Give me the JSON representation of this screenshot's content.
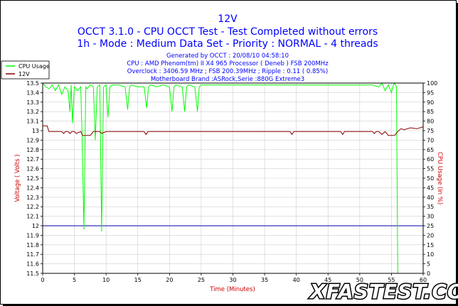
{
  "header": {
    "title": "12V",
    "line1": "OCCT 3.1.0 - CPU OCCT Test - Test Completed without errors",
    "line2": "1h - Mode : Medium Data Set - Priority : NORMAL - 4 threads"
  },
  "info": {
    "generated": "Generated by OCCT : 20/08/10 04:58:10",
    "cpu": "CPU : AMD Phenom(tm) II X4 965 Processor ( Deneb ) FSB 200MHz",
    "overclock": "Overclock : 3406.59 MHz ; FSB 200.39MHz ; Ripple : 0.11 ( 0.85%)",
    "motherboard": "Motherboard Brand :ASRock,Serie :880G Extreme3"
  },
  "watermark": {
    "brand": "XFASTEST.COM",
    "domain": ".com"
  },
  "colors": {
    "voltage": "#8b0000",
    "cpu": "#00ff00",
    "reference": "#0000aa",
    "title": "#0000ff",
    "axis_label": "#cc0000"
  },
  "chart_data": {
    "type": "line",
    "xlabel": "Time (Minutes)",
    "ylabel_left": "Voltage ( Volts )",
    "ylabel_right": "CPU Usage (in %)",
    "xlim": [
      0,
      60
    ],
    "ylim_left": [
      11.5,
      13.5
    ],
    "ylim_right": [
      0,
      100
    ],
    "x_ticks": [
      0,
      5,
      10,
      15,
      20,
      25,
      30,
      35,
      40,
      45,
      50,
      55,
      60
    ],
    "y_ticks_left": [
      "11.5",
      "11.6",
      "11.7",
      "11.8",
      "11.9",
      "12",
      "12.1",
      "12.2",
      "12.3",
      "12.4",
      "12.5",
      "12.6",
      "12.7",
      "12.8",
      "12.9",
      "13",
      "13.1",
      "13.2",
      "13.3",
      "13.4",
      "13.5"
    ],
    "y_ticks_right": [
      0,
      5,
      10,
      15,
      20,
      25,
      30,
      35,
      40,
      45,
      50,
      55,
      60,
      65,
      70,
      75,
      80,
      85,
      90,
      95,
      100
    ],
    "reference_line": 12.0,
    "legend": {
      "position": "top-left",
      "entries": [
        "CPU Usage",
        "12V"
      ]
    },
    "series": [
      {
        "name": "CPU Usage",
        "axis": "right",
        "x": [
          0,
          0.5,
          1,
          1.5,
          2,
          2.5,
          3,
          3.5,
          4,
          4.3,
          4.5,
          4.7,
          5,
          5.5,
          6,
          6.2,
          6.5,
          6.8,
          7,
          7.5,
          8,
          8.3,
          8.6,
          9,
          9.3,
          9.6,
          10,
          10.3,
          10.6,
          11,
          12,
          13,
          13.4,
          13.7,
          14,
          15,
          16,
          16.4,
          16.7,
          17,
          18,
          19,
          20,
          20.4,
          20.7,
          21,
          22,
          22.4,
          22.7,
          23,
          24,
          24.4,
          24.7,
          25,
          26,
          27,
          28,
          30,
          32,
          34,
          36,
          38,
          40,
          42,
          44,
          46,
          48,
          50,
          52,
          53,
          53.5,
          54,
          54.5,
          55,
          55.3,
          55.5,
          55.8,
          56,
          56.2,
          60
        ],
        "values": [
          100,
          98,
          97,
          99,
          96,
          99,
          94,
          98,
          96,
          85,
          99,
          79,
          98,
          96,
          98,
          74,
          23,
          98,
          97,
          99,
          98,
          70,
          98,
          99,
          22,
          98,
          99,
          82,
          98,
          99,
          99,
          98,
          86,
          98,
          99,
          98,
          98,
          87,
          98,
          99,
          98,
          99,
          98,
          85,
          98,
          99,
          98,
          85,
          98,
          99,
          98,
          85,
          98,
          99,
          99,
          99,
          99,
          99,
          99,
          99,
          99,
          99,
          99,
          99,
          99,
          99,
          99,
          99,
          99,
          98,
          100,
          96,
          99,
          95,
          99,
          100,
          98,
          0,
          0,
          0
        ]
      },
      {
        "name": "12V",
        "axis": "left",
        "x": [
          0,
          0.7,
          1.0,
          3.0,
          3.3,
          3.6,
          4.0,
          4.3,
          4.6,
          5.0,
          5.3,
          6.0,
          6.3,
          6.6,
          7.0,
          7.5,
          8.0,
          9.0,
          9.3,
          10,
          13,
          16,
          16.3,
          16.6,
          20,
          24,
          30,
          38,
          39.0,
          39.3,
          39.6,
          45,
          47.0,
          47.3,
          47.6,
          50,
          52.0,
          52.3,
          52.6,
          53,
          53.5,
          54,
          54.5,
          55,
          55.5,
          56,
          56.5,
          57,
          58,
          59,
          60
        ],
        "values": [
          13.05,
          13.05,
          12.99,
          12.99,
          12.97,
          12.99,
          12.99,
          12.97,
          12.99,
          12.99,
          12.97,
          12.99,
          12.95,
          12.95,
          12.95,
          12.95,
          12.99,
          12.99,
          12.97,
          12.99,
          12.99,
          12.99,
          12.96,
          12.99,
          12.99,
          12.99,
          12.99,
          12.99,
          12.99,
          12.96,
          12.99,
          12.99,
          12.99,
          12.96,
          12.99,
          12.99,
          12.99,
          12.97,
          12.99,
          12.99,
          12.96,
          12.99,
          12.95,
          12.95,
          12.95,
          12.99,
          13.02,
          13.01,
          13.03,
          13.02,
          13.04
        ]
      }
    ]
  }
}
